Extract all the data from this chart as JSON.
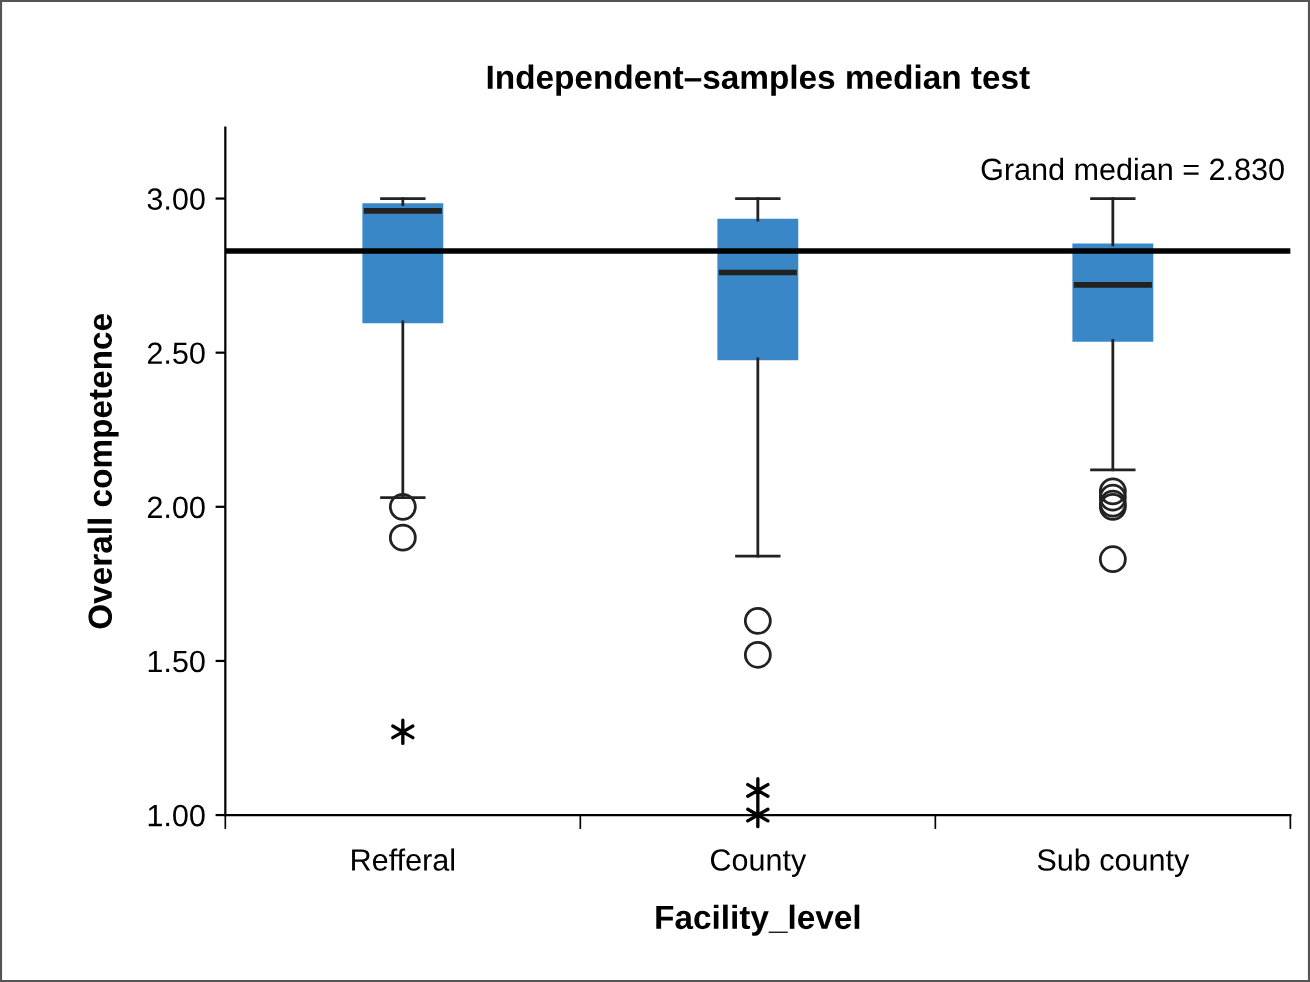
{
  "chart_data": {
    "type": "box",
    "title": "Independent–samples median test",
    "xlabel": "Facility_level",
    "ylabel": "Overall competence",
    "categories": [
      "Refferal",
      "County",
      "Sub county"
    ],
    "ylim": [
      1.0,
      3.23
    ],
    "yticks": [
      {
        "value": 1.0,
        "label": "1.00"
      },
      {
        "value": 1.5,
        "label": "1.50"
      },
      {
        "value": 2.0,
        "label": "2.00"
      },
      {
        "value": 2.5,
        "label": "2.50"
      },
      {
        "value": 3.0,
        "label": "3.00"
      }
    ],
    "series": [
      {
        "color": "#3a87c8",
        "boxes": [
          {
            "low": 2.03,
            "q1": 2.6,
            "median": 2.96,
            "q3": 2.98,
            "high": 3.0,
            "outliers": [
              2.0,
              1.9
            ]
          },
          {
            "low": 1.84,
            "q1": 2.48,
            "median": 2.76,
            "q3": 2.93,
            "high": 3.0,
            "outliers": [
              1.63,
              1.52
            ]
          },
          {
            "low": 2.12,
            "q1": 2.54,
            "median": 2.72,
            "q3": 2.85,
            "high": 3.0,
            "outliers": [
              2.05,
              2.03,
              2.01,
              2.0,
              1.83
            ]
          }
        ]
      },
      {
        "type": "scatter",
        "marker": "cross",
        "color": "#000000",
        "x": [
          "Refferal",
          "County",
          "County"
        ],
        "values": [
          1.27,
          1.08,
          1.0
        ]
      }
    ],
    "ref_lines": [
      {
        "axis": "y",
        "value": 2.83,
        "label": "Grand median = 2.830",
        "color": "#000000"
      }
    ],
    "grid": false,
    "legend": false
  }
}
